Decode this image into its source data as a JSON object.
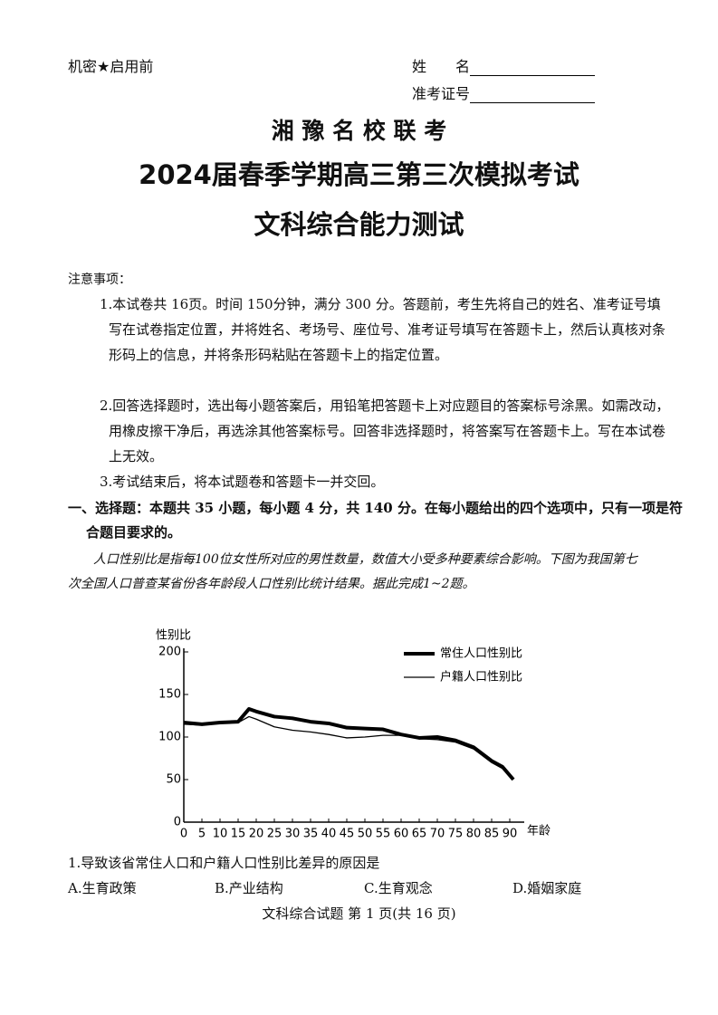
{
  "header": {
    "secret": "机密★启用前",
    "name_label": "姓　　名",
    "id_label": "准考证号"
  },
  "title": {
    "org": "湘 豫 名 校 联 考",
    "exam": "2024届春季学期高三第三次模拟考试",
    "subject": "文科综合能力测试"
  },
  "notice": {
    "heading": "注意事项：",
    "items": [
      "1.本试卷共 16页。时间 150分钟，满分 300 分。答题前，考生先将自己的姓名、准考证号填写在试卷指定位置，并将姓名、考场号、座位号、准考证号填写在答题卡上，然后认真核对条形码上的信息，并将条形码粘贴在答题卡上的指定位置。",
      "2.回答选择题时，选出每小题答案后，用铅笔把答题卡上对应题目的答案标号涂黑。如需改动，用橡皮擦干净后，再选涂其他答案标号。回答非选择题时，将答案写在答题卡上。写在本试卷上无效。",
      "3.考试结束后，将本试题卷和答题卡一并交回。"
    ]
  },
  "section": "一、选择题：本题共 35 小题，每小题 4 分，共 140 分。在每小题给出的四个选项中，只有一项是符合题目要求的。",
  "passage": "人口性别比是指每100位女性所对应的男性数量，数值大小受多种要素综合影响。下图为我国第七次全国人口普查某省份各年龄段人口性别比统计结果。据此完成1~2题。",
  "chart_data": {
    "type": "line",
    "y_label": "性别比",
    "x_label": "年龄",
    "x": [
      0,
      5,
      10,
      15,
      18,
      20,
      25,
      30,
      35,
      40,
      45,
      50,
      55,
      60,
      65,
      70,
      75,
      80,
      85,
      88,
      91
    ],
    "series": [
      {
        "name": "常住人口性别比",
        "color": "#000000",
        "values": [
          117,
          115,
          117,
          118,
          133,
          130,
          124,
          122,
          118,
          116,
          111,
          110,
          109,
          103,
          99,
          100,
          96,
          88,
          72,
          65,
          50
        ]
      },
      {
        "name": "户籍人口性别比",
        "color": "#000000",
        "values": [
          115,
          114,
          116,
          117,
          124,
          121,
          112,
          108,
          106,
          103,
          99,
          100,
          102,
          102,
          98,
          97,
          94,
          86,
          70,
          63,
          52
        ]
      }
    ],
    "xlim": [
      0,
      92
    ],
    "ylim": [
      0,
      200
    ],
    "xticks": [
      0,
      5,
      10,
      15,
      20,
      25,
      30,
      35,
      40,
      45,
      50,
      55,
      60,
      65,
      70,
      75,
      80,
      85,
      90
    ],
    "yticks": [
      0,
      50,
      100,
      150,
      200
    ]
  },
  "question": {
    "stem": "1.导致该省常住人口和户籍人口性别比差异的原因是",
    "options": [
      "A.生育政策",
      "B.产业结构",
      "C.生育观念",
      "D.婚姻家庭"
    ]
  },
  "footer": "文科综合试题 第 1 页(共 16 页)"
}
